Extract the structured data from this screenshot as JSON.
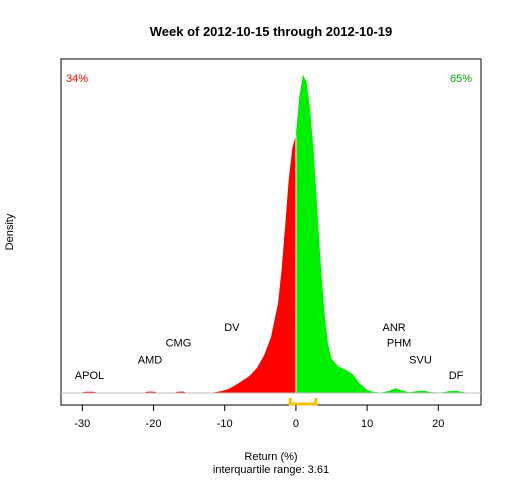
{
  "chart_data": {
    "type": "area",
    "title": "Week of 2012-10-15 through 2012-10-19",
    "xlabel": "Return (%)",
    "ylabel": "Density",
    "subtitle": "interquartile range: 3.61",
    "xlim": [
      -33,
      26
    ],
    "ylim": [
      0,
      0.215
    ],
    "x_ticks": [
      -30,
      -20,
      -10,
      0,
      10,
      20
    ],
    "negative_share": "34%",
    "positive_share": "65%",
    "colors": {
      "negative": "#ff0000",
      "positive": "#00ee00",
      "baseline": "#bebebe",
      "iqr": "#f5c200"
    },
    "iqr_bracket": [
      -0.8,
      2.8
    ],
    "annotations": [
      {
        "text": "APOL",
        "x": -29.0,
        "y": 0.009
      },
      {
        "text": "AMD",
        "x": -20.5,
        "y": 0.019
      },
      {
        "text": "CMG",
        "x": -16.5,
        "y": 0.03
      },
      {
        "text": "DV",
        "x": -9.0,
        "y": 0.04
      },
      {
        "text": "ANR",
        "x": 13.8,
        "y": 0.04
      },
      {
        "text": "PHM",
        "x": 14.5,
        "y": 0.03
      },
      {
        "text": "SVU",
        "x": 17.5,
        "y": 0.019
      },
      {
        "text": "DF",
        "x": 22.5,
        "y": 0.009
      }
    ],
    "density": [
      [
        -33,
        0
      ],
      [
        -30.5,
        0
      ],
      [
        -29.5,
        0.0008
      ],
      [
        -28.5,
        0.0008
      ],
      [
        -27.5,
        0
      ],
      [
        -21.5,
        0
      ],
      [
        -20.8,
        0.0009
      ],
      [
        -20.0,
        0.0009
      ],
      [
        -19.3,
        0
      ],
      [
        -17.2,
        0
      ],
      [
        -16.5,
        0.0009
      ],
      [
        -15.8,
        0.0009
      ],
      [
        -15.2,
        0
      ],
      [
        -13,
        0
      ],
      [
        -11.5,
        0.0004
      ],
      [
        -10.5,
        0.0012
      ],
      [
        -9.5,
        0.0025
      ],
      [
        -8.5,
        0.005
      ],
      [
        -7.5,
        0.008
      ],
      [
        -6.5,
        0.011
      ],
      [
        -5.5,
        0.016
      ],
      [
        -4.5,
        0.024
      ],
      [
        -3.5,
        0.036
      ],
      [
        -2.5,
        0.058
      ],
      [
        -2.0,
        0.08
      ],
      [
        -1.5,
        0.108
      ],
      [
        -1.0,
        0.138
      ],
      [
        -0.5,
        0.158
      ],
      [
        0,
        0.166
      ],
      [
        0.5,
        0.192
      ],
      [
        1.0,
        0.205
      ],
      [
        1.5,
        0.2
      ],
      [
        2.0,
        0.182
      ],
      [
        2.5,
        0.155
      ],
      [
        3.0,
        0.118
      ],
      [
        3.5,
        0.082
      ],
      [
        4.0,
        0.052
      ],
      [
        4.5,
        0.032
      ],
      [
        5.0,
        0.022
      ],
      [
        6.0,
        0.017
      ],
      [
        7.0,
        0.015
      ],
      [
        8.0,
        0.012
      ],
      [
        9.0,
        0.006
      ],
      [
        10.0,
        0.002
      ],
      [
        11.0,
        0.0006
      ],
      [
        12.0,
        0.0003
      ],
      [
        13.0,
        0.0012
      ],
      [
        14.0,
        0.003
      ],
      [
        15.0,
        0.0015
      ],
      [
        16.0,
        0.0004
      ],
      [
        17.0,
        0.0012
      ],
      [
        18.0,
        0.0015
      ],
      [
        19.0,
        0.0005
      ],
      [
        20.5,
        0.0003
      ],
      [
        21.5,
        0.0012
      ],
      [
        22.5,
        0.0015
      ],
      [
        23.5,
        0.0006
      ],
      [
        24.5,
        0
      ],
      [
        26,
        0
      ]
    ]
  }
}
